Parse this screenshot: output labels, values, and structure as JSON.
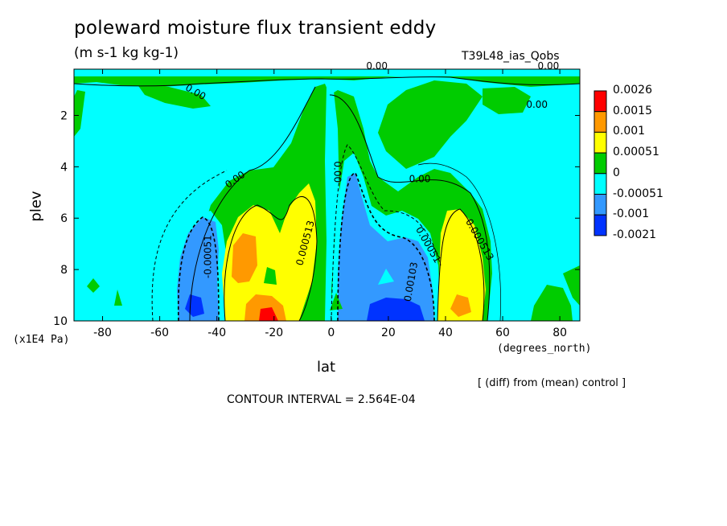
{
  "chart_data": {
    "type": "heatmap",
    "title": "poleward moisture flux transient eddy",
    "units": "(m s-1 kg kg-1)",
    "run_label": "T39L48_ias_Qobs",
    "xlabel": "lat",
    "x_units": "(degrees_north)",
    "ylabel": "plev",
    "y_units": "(x1E4 Pa)",
    "xlim": [
      -90,
      87
    ],
    "ylim": [
      0.2,
      10
    ],
    "y_inverted": true,
    "x_ticks": [
      -80,
      -60,
      -40,
      -20,
      0,
      20,
      40,
      60,
      80
    ],
    "y_ticks": [
      2,
      4,
      6,
      8,
      10
    ],
    "contour_interval_text": "CONTOUR INTERVAL = 2.564E-04",
    "note": "[ (diff) from (mean) control ]",
    "colorbar": {
      "labels": [
        "0.0026",
        "0.0015",
        "0.001",
        "0.00051",
        "0",
        "-0.00051",
        "-0.001",
        "-0.0021"
      ],
      "colors": [
        "#ff0000",
        "#ff9900",
        "#ffff00",
        "#00cc00",
        "#00ffff",
        "#3399ff",
        "#0033ff"
      ]
    },
    "contour_labels": [
      {
        "text": "0.00",
        "lat": -48,
        "plev": 1.2
      },
      {
        "text": "0.00",
        "lat": 16,
        "plev": 0.2
      },
      {
        "text": "0.00",
        "lat": 76,
        "plev": 0.2
      },
      {
        "text": "0.00",
        "lat": 72,
        "plev": 1.7
      },
      {
        "text": "0.00",
        "lat": -33,
        "plev": 4.6
      },
      {
        "text": "0.00",
        "lat": 31,
        "plev": 4.6
      },
      {
        "text": "0.00",
        "lat": 1,
        "plev": 4.2
      },
      {
        "text": "-0.00051",
        "lat": -42,
        "plev": 7.5
      },
      {
        "text": "0.000513",
        "lat": -8,
        "plev": 7.0
      },
      {
        "text": "0.00051",
        "lat": 33,
        "plev": 7.1
      },
      {
        "text": "0.00103",
        "lat": 29,
        "plev": 8.5
      },
      {
        "text": "0.000513",
        "lat": 51,
        "plev": 6.9
      }
    ]
  }
}
